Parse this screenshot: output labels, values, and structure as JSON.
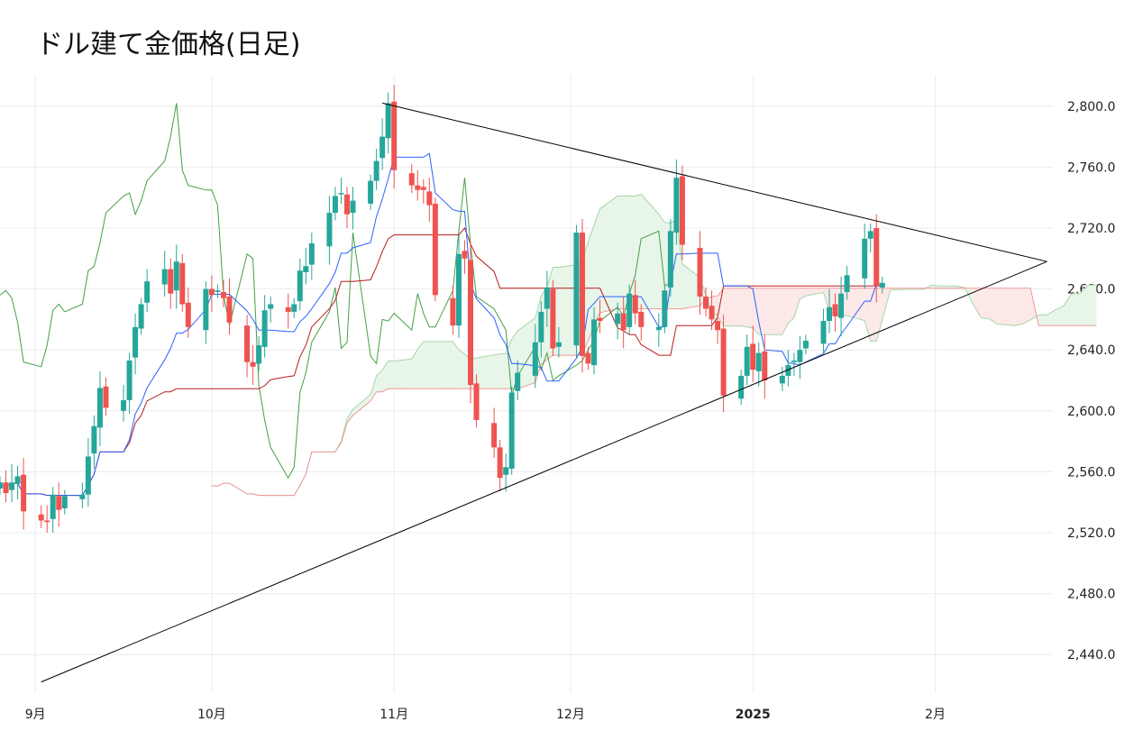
{
  "chart_data": {
    "type": "candlestick",
    "title": "ドル建て金価格(日足)",
    "xlabel": "",
    "ylabel": "",
    "ylim": [
      2420,
      2820
    ],
    "y_ticks": [
      2440,
      2480,
      2520,
      2560,
      2600,
      2640,
      2680,
      2720,
      2760,
      2800
    ],
    "y_tick_labels": [
      "2,440.0",
      "2,480.0",
      "2,520.0",
      "2,560.0",
      "2,600.0",
      "2,640.0",
      "2,680.0",
      "2,720.0",
      "2,760.0",
      "2,800.0"
    ],
    "x_ticks": [
      {
        "label": "9月",
        "date": "2024-09-01",
        "bold": false
      },
      {
        "label": "10月",
        "date": "2024-10-01",
        "bold": false
      },
      {
        "label": "11月",
        "date": "2024-11-01",
        "bold": false
      },
      {
        "label": "12月",
        "date": "2024-12-01",
        "bold": false
      },
      {
        "label": "2025",
        "date": "2025-01-01",
        "bold": true
      },
      {
        "label": "2月",
        "date": "2025-02-01",
        "bold": false
      }
    ],
    "xlim": [
      "2024-08-26",
      "2025-02-21"
    ],
    "grid": true,
    "up_color": "#26a69a",
    "down_color": "#ef5350",
    "candles_daily_closes": [
      2553,
      2546,
      2553,
      2557,
      2534,
      2528,
      2527,
      2545,
      2535,
      2544,
      2545,
      2570,
      2590,
      2615,
      2602,
      2607,
      2633,
      2655,
      2670,
      2685,
      2693,
      2677,
      2698,
      2670,
      2655,
      2680,
      2676,
      2679,
      2674,
      2658,
      2632,
      2629,
      2643,
      2666,
      2670,
      2665,
      2670,
      2692,
      2695,
      2710,
      2730,
      2741,
      2743,
      2729,
      2738,
      2751,
      2764,
      2780,
      2802,
      2758,
      2748,
      2745,
      2745,
      2735,
      2676,
      2656,
      2703,
      2700,
      2617,
      2594,
      2576,
      2556,
      2563,
      2612,
      2625,
      2645,
      2665,
      2681,
      2641,
      2645,
      2717,
      2636,
      2631,
      2660,
      2659,
      2664,
      2653,
      2677,
      2664,
      2655,
      2655,
      2679,
      2718,
      2753,
      2709,
      2675,
      2667,
      2660,
      2653,
      2610,
      2623,
      2642,
      2627,
      2638,
      2620,
      2623,
      2630,
      2633,
      2640,
      2646,
      2659,
      2668,
      2662,
      2677,
      2689,
      2713,
      2718,
      2682,
      2684
    ],
    "ichimoku": {
      "conversion_line": "blue",
      "base_line": "darkred",
      "lagging_span": "green",
      "cloud_bullish": "#e8f5e9",
      "cloud_bearish": "#fde8e8"
    },
    "triangle_lines": {
      "upper": {
        "from": [
          "2024-10-30",
          2802
        ],
        "to": [
          "2025-02-20",
          2698
        ]
      },
      "lower": {
        "from": [
          "2024-09-02",
          2422
        ],
        "to": [
          "2025-02-20",
          2698
        ]
      }
    },
    "colors": {
      "conversion_line": "#2962ff",
      "base_line": "#b71c1c",
      "lagging_span": "#43a047",
      "trend_lines": "#000000",
      "grid": "#ececec"
    }
  }
}
